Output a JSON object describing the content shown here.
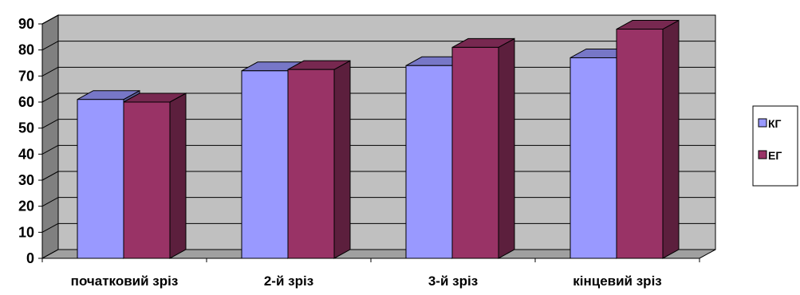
{
  "chart_data": {
    "type": "bar",
    "title": "",
    "xlabel": "",
    "ylabel": "",
    "categories": [
      "початковий зріз",
      "2-й зріз",
      "3-й зріз",
      "кінцевий зріз"
    ],
    "series": [
      {
        "name": "КГ",
        "values": [
          61,
          72,
          74,
          77
        ],
        "color": "#9999ff"
      },
      {
        "name": "ЕГ",
        "values": [
          60,
          72.5,
          81,
          88
        ],
        "color": "#993366"
      }
    ],
    "ylim": [
      0,
      90
    ],
    "yticks": [
      0,
      10,
      20,
      30,
      40,
      50,
      60,
      70,
      80,
      90
    ],
    "grid": true,
    "three_d": true,
    "wall_color": "#c0c0c0",
    "legend": "right"
  }
}
